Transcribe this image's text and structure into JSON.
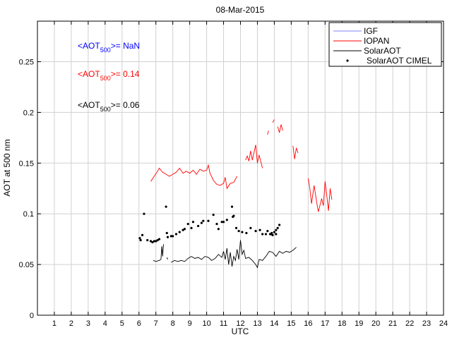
{
  "chart_data": {
    "type": "line",
    "title": "08-Mar-2015",
    "xlabel": "UTC",
    "ylabel": "AOT at 500 nm",
    "xlim": [
      0,
      24
    ],
    "ylim": [
      0,
      0.29
    ],
    "xticks": [
      1,
      2,
      3,
      4,
      5,
      6,
      7,
      8,
      9,
      10,
      11,
      12,
      13,
      14,
      15,
      16,
      17,
      18,
      19,
      20,
      21,
      22,
      23,
      24
    ],
    "yticks": [
      0,
      0.05,
      0.1,
      0.15,
      0.2,
      0.25
    ],
    "ytick_labels": [
      "0",
      "0.05",
      "0.1",
      "0.15",
      "0.2",
      "0.25"
    ],
    "grid": true,
    "legend_position": "top-right",
    "annotations": [
      {
        "prefix": "<AOT",
        "sub": "500",
        "suffix": ">=  NaN",
        "color": "#0000ff"
      },
      {
        "prefix": "<AOT",
        "sub": "500",
        "suffix": ">= 0.14",
        "color": "#ff0000"
      },
      {
        "prefix": "<AOT",
        "sub": "500",
        "suffix": ">= 0.06",
        "color": "#000000"
      }
    ],
    "series": [
      {
        "name": "IGF",
        "kind": "line",
        "color": "#8080ff",
        "segments": []
      },
      {
        "name": "IOPAN",
        "kind": "line",
        "color": "#ff0000",
        "segments": [
          [
            [
              6.7,
              0.132
            ],
            [
              6.9,
              0.137
            ],
            [
              7.1,
              0.142
            ],
            [
              7.2,
              0.145
            ],
            [
              7.4,
              0.141
            ],
            [
              7.6,
              0.139
            ],
            [
              7.8,
              0.137
            ],
            [
              8.0,
              0.139
            ],
            [
              8.2,
              0.141
            ],
            [
              8.4,
              0.145
            ],
            [
              8.6,
              0.14
            ],
            [
              8.8,
              0.142
            ],
            [
              9.0,
              0.14
            ],
            [
              9.2,
              0.143
            ],
            [
              9.4,
              0.139
            ],
            [
              9.6,
              0.144
            ],
            [
              9.8,
              0.142
            ],
            [
              10.0,
              0.143
            ],
            [
              10.1,
              0.148
            ],
            [
              10.2,
              0.14
            ],
            [
              10.4,
              0.133
            ],
            [
              10.6,
              0.129
            ],
            [
              10.8,
              0.128
            ],
            [
              11.0,
              0.13
            ],
            [
              11.1,
              0.136
            ],
            [
              11.2,
              0.125
            ],
            [
              11.4,
              0.13
            ],
            [
              11.6,
              0.131
            ],
            [
              11.8,
              0.137
            ]
          ],
          [
            [
              12.3,
              0.153
            ],
            [
              12.4,
              0.157
            ],
            [
              12.5,
              0.152
            ],
            [
              12.6,
              0.162
            ],
            [
              12.7,
              0.153
            ],
            [
              12.9,
              0.168
            ],
            [
              13.0,
              0.15
            ],
            [
              13.1,
              0.158
            ],
            [
              13.3,
              0.145
            ]
          ],
          [
            [
              13.6,
              0.178
            ],
            [
              13.65,
              0.182
            ]
          ],
          [
            [
              13.9,
              0.19
            ],
            [
              14.0,
              0.193
            ]
          ],
          [
            [
              14.2,
              0.186
            ],
            [
              14.3,
              0.18
            ],
            [
              14.4,
              0.188
            ],
            [
              14.5,
              0.182
            ]
          ],
          [
            [
              15.1,
              0.167
            ],
            [
              15.2,
              0.154
            ],
            [
              15.3,
              0.165
            ],
            [
              15.4,
              0.16
            ]
          ],
          [
            [
              16.0,
              0.135
            ],
            [
              16.1,
              0.125
            ],
            [
              16.2,
              0.11
            ],
            [
              16.35,
              0.128
            ],
            [
              16.5,
              0.112
            ],
            [
              16.6,
              0.102
            ],
            [
              16.8,
              0.115
            ],
            [
              16.9,
              0.108
            ],
            [
              17.0,
              0.132
            ],
            [
              17.1,
              0.118
            ],
            [
              17.2,
              0.103
            ],
            [
              17.3,
              0.125
            ],
            [
              17.4,
              0.114
            ]
          ]
        ]
      },
      {
        "name": "SolarAOT",
        "kind": "line",
        "color": "#000000",
        "segments": [
          [
            [
              6.85,
              0.054
            ],
            [
              7.0,
              0.053
            ],
            [
              7.2,
              0.054
            ],
            [
              7.3,
              0.055
            ],
            [
              7.35,
              0.068
            ],
            [
              7.4,
              0.058
            ],
            [
              7.45,
              0.07
            ]
          ],
          [
            [
              7.65,
              0.057
            ],
            [
              7.7,
              0.055
            ]
          ],
          [
            [
              7.9,
              0.052
            ],
            [
              8.1,
              0.054
            ],
            [
              8.3,
              0.053
            ],
            [
              8.5,
              0.054
            ],
            [
              8.7,
              0.053
            ],
            [
              8.9,
              0.056
            ],
            [
              9.1,
              0.058
            ],
            [
              9.3,
              0.056
            ],
            [
              9.5,
              0.057
            ],
            [
              9.7,
              0.055
            ],
            [
              9.9,
              0.058
            ],
            [
              10.1,
              0.057
            ],
            [
              10.3,
              0.054
            ],
            [
              10.5,
              0.056
            ],
            [
              10.7,
              0.06
            ],
            [
              10.9,
              0.057
            ],
            [
              11.0,
              0.063
            ],
            [
              11.1,
              0.055
            ],
            [
              11.2,
              0.066
            ],
            [
              11.3,
              0.05
            ],
            [
              11.4,
              0.062
            ],
            [
              11.5,
              0.048
            ],
            [
              11.6,
              0.058
            ],
            [
              11.7,
              0.054
            ],
            [
              11.8,
              0.065
            ],
            [
              11.9,
              0.055
            ],
            [
              12.0,
              0.074
            ],
            [
              12.1,
              0.06
            ],
            [
              12.2,
              0.064
            ],
            [
              12.3,
              0.056
            ],
            [
              12.5,
              0.057
            ],
            [
              12.7,
              0.054
            ],
            [
              12.9,
              0.05
            ],
            [
              13.0,
              0.047
            ],
            [
              13.1,
              0.055
            ],
            [
              13.3,
              0.054
            ],
            [
              13.5,
              0.058
            ],
            [
              13.7,
              0.063
            ],
            [
              13.9,
              0.062
            ],
            [
              14.1,
              0.058
            ],
            [
              14.3,
              0.063
            ],
            [
              14.5,
              0.061
            ],
            [
              14.7,
              0.063
            ],
            [
              14.9,
              0.062
            ],
            [
              15.1,
              0.064
            ],
            [
              15.3,
              0.067
            ]
          ]
        ]
      },
      {
        "name": "SolarAOT CIMEL",
        "kind": "scatter",
        "color": "#000000",
        "points": [
          [
            6.05,
            0.076
          ],
          [
            6.1,
            0.074
          ],
          [
            6.2,
            0.079
          ],
          [
            6.3,
            0.1
          ],
          [
            6.5,
            0.074
          ],
          [
            6.7,
            0.073
          ],
          [
            6.8,
            0.072
          ],
          [
            6.9,
            0.073
          ],
          [
            7.0,
            0.073
          ],
          [
            7.1,
            0.074
          ],
          [
            7.2,
            0.075
          ],
          [
            7.6,
            0.107
          ],
          [
            7.65,
            0.081
          ],
          [
            7.7,
            0.077
          ],
          [
            7.9,
            0.078
          ],
          [
            8.0,
            0.078
          ],
          [
            8.2,
            0.08
          ],
          [
            8.4,
            0.082
          ],
          [
            8.6,
            0.084
          ],
          [
            8.7,
            0.085
          ],
          [
            8.9,
            0.09
          ],
          [
            9.1,
            0.086
          ],
          [
            9.2,
            0.092
          ],
          [
            9.5,
            0.088
          ],
          [
            9.7,
            0.091
          ],
          [
            9.8,
            0.093
          ],
          [
            10.1,
            0.093
          ],
          [
            10.4,
            0.099
          ],
          [
            10.6,
            0.09
          ],
          [
            10.7,
            0.085
          ],
          [
            10.9,
            0.092
          ],
          [
            11.0,
            0.092
          ],
          [
            11.2,
            0.094
          ],
          [
            11.5,
            0.107
          ],
          [
            11.55,
            0.097
          ],
          [
            11.6,
            0.098
          ],
          [
            11.75,
            0.086
          ],
          [
            11.9,
            0.083
          ],
          [
            12.1,
            0.082
          ],
          [
            12.35,
            0.081
          ],
          [
            12.6,
            0.086
          ],
          [
            12.9,
            0.083
          ],
          [
            13.15,
            0.084
          ],
          [
            13.3,
            0.08
          ],
          [
            13.5,
            0.08
          ],
          [
            13.6,
            0.083
          ],
          [
            13.75,
            0.08
          ],
          [
            13.8,
            0.08
          ],
          [
            13.85,
            0.081
          ],
          [
            13.9,
            0.079
          ],
          [
            14.0,
            0.082
          ],
          [
            14.1,
            0.084
          ],
          [
            14.2,
            0.086
          ],
          [
            14.3,
            0.089
          ],
          [
            14.1,
            0.08
          ]
        ]
      }
    ]
  }
}
